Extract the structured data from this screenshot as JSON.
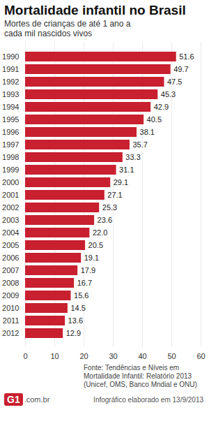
{
  "chart_data": {
    "type": "bar",
    "orientation": "horizontal",
    "title": "Mortalidade infantil no Brasil",
    "subtitle": "Mortes de crianças de até 1 ano a cada mil nascidos vivos",
    "categories": [
      "1990",
      "1991",
      "1992",
      "1993",
      "1994",
      "1995",
      "1996",
      "1997",
      "1998",
      "1999",
      "2000",
      "2001",
      "2002",
      "2003",
      "2004",
      "2005",
      "2006",
      "2007",
      "2008",
      "2009",
      "2010",
      "2011",
      "2012"
    ],
    "values": [
      51.6,
      49.7,
      47.5,
      45.3,
      42.9,
      40.5,
      38.1,
      35.7,
      33.3,
      31.1,
      29.1,
      27.1,
      25.3,
      23.6,
      22.0,
      20.5,
      19.1,
      17.9,
      16.7,
      15.6,
      14.5,
      13.6,
      12.9
    ],
    "value_labels": [
      "51.6",
      "49.7",
      "47.5",
      "45.3",
      "42.9",
      "40.5",
      "38.1",
      "35.7",
      "33.3",
      "31.1",
      "29.1",
      "27.1",
      "25.3",
      "23.6",
      "22.0",
      "20.5",
      "19.1",
      "17.9",
      "16.7",
      "15.6",
      "14.5",
      "13.6",
      "12.9"
    ],
    "data_labels": true,
    "color": "#c8202f",
    "xlim": [
      0,
      60
    ],
    "xticks": [
      0,
      10,
      20,
      30,
      40,
      50,
      60
    ],
    "grid": true,
    "annotations": [
      "Fonte: Tendências e Níveis em Mortalidade Infantil: Relatório 2013 (Unicef, OMS, Banco Mndial e ONU)",
      "G1",
      ".com.br",
      "Infográfico elaborado em 13/9/2013"
    ]
  }
}
